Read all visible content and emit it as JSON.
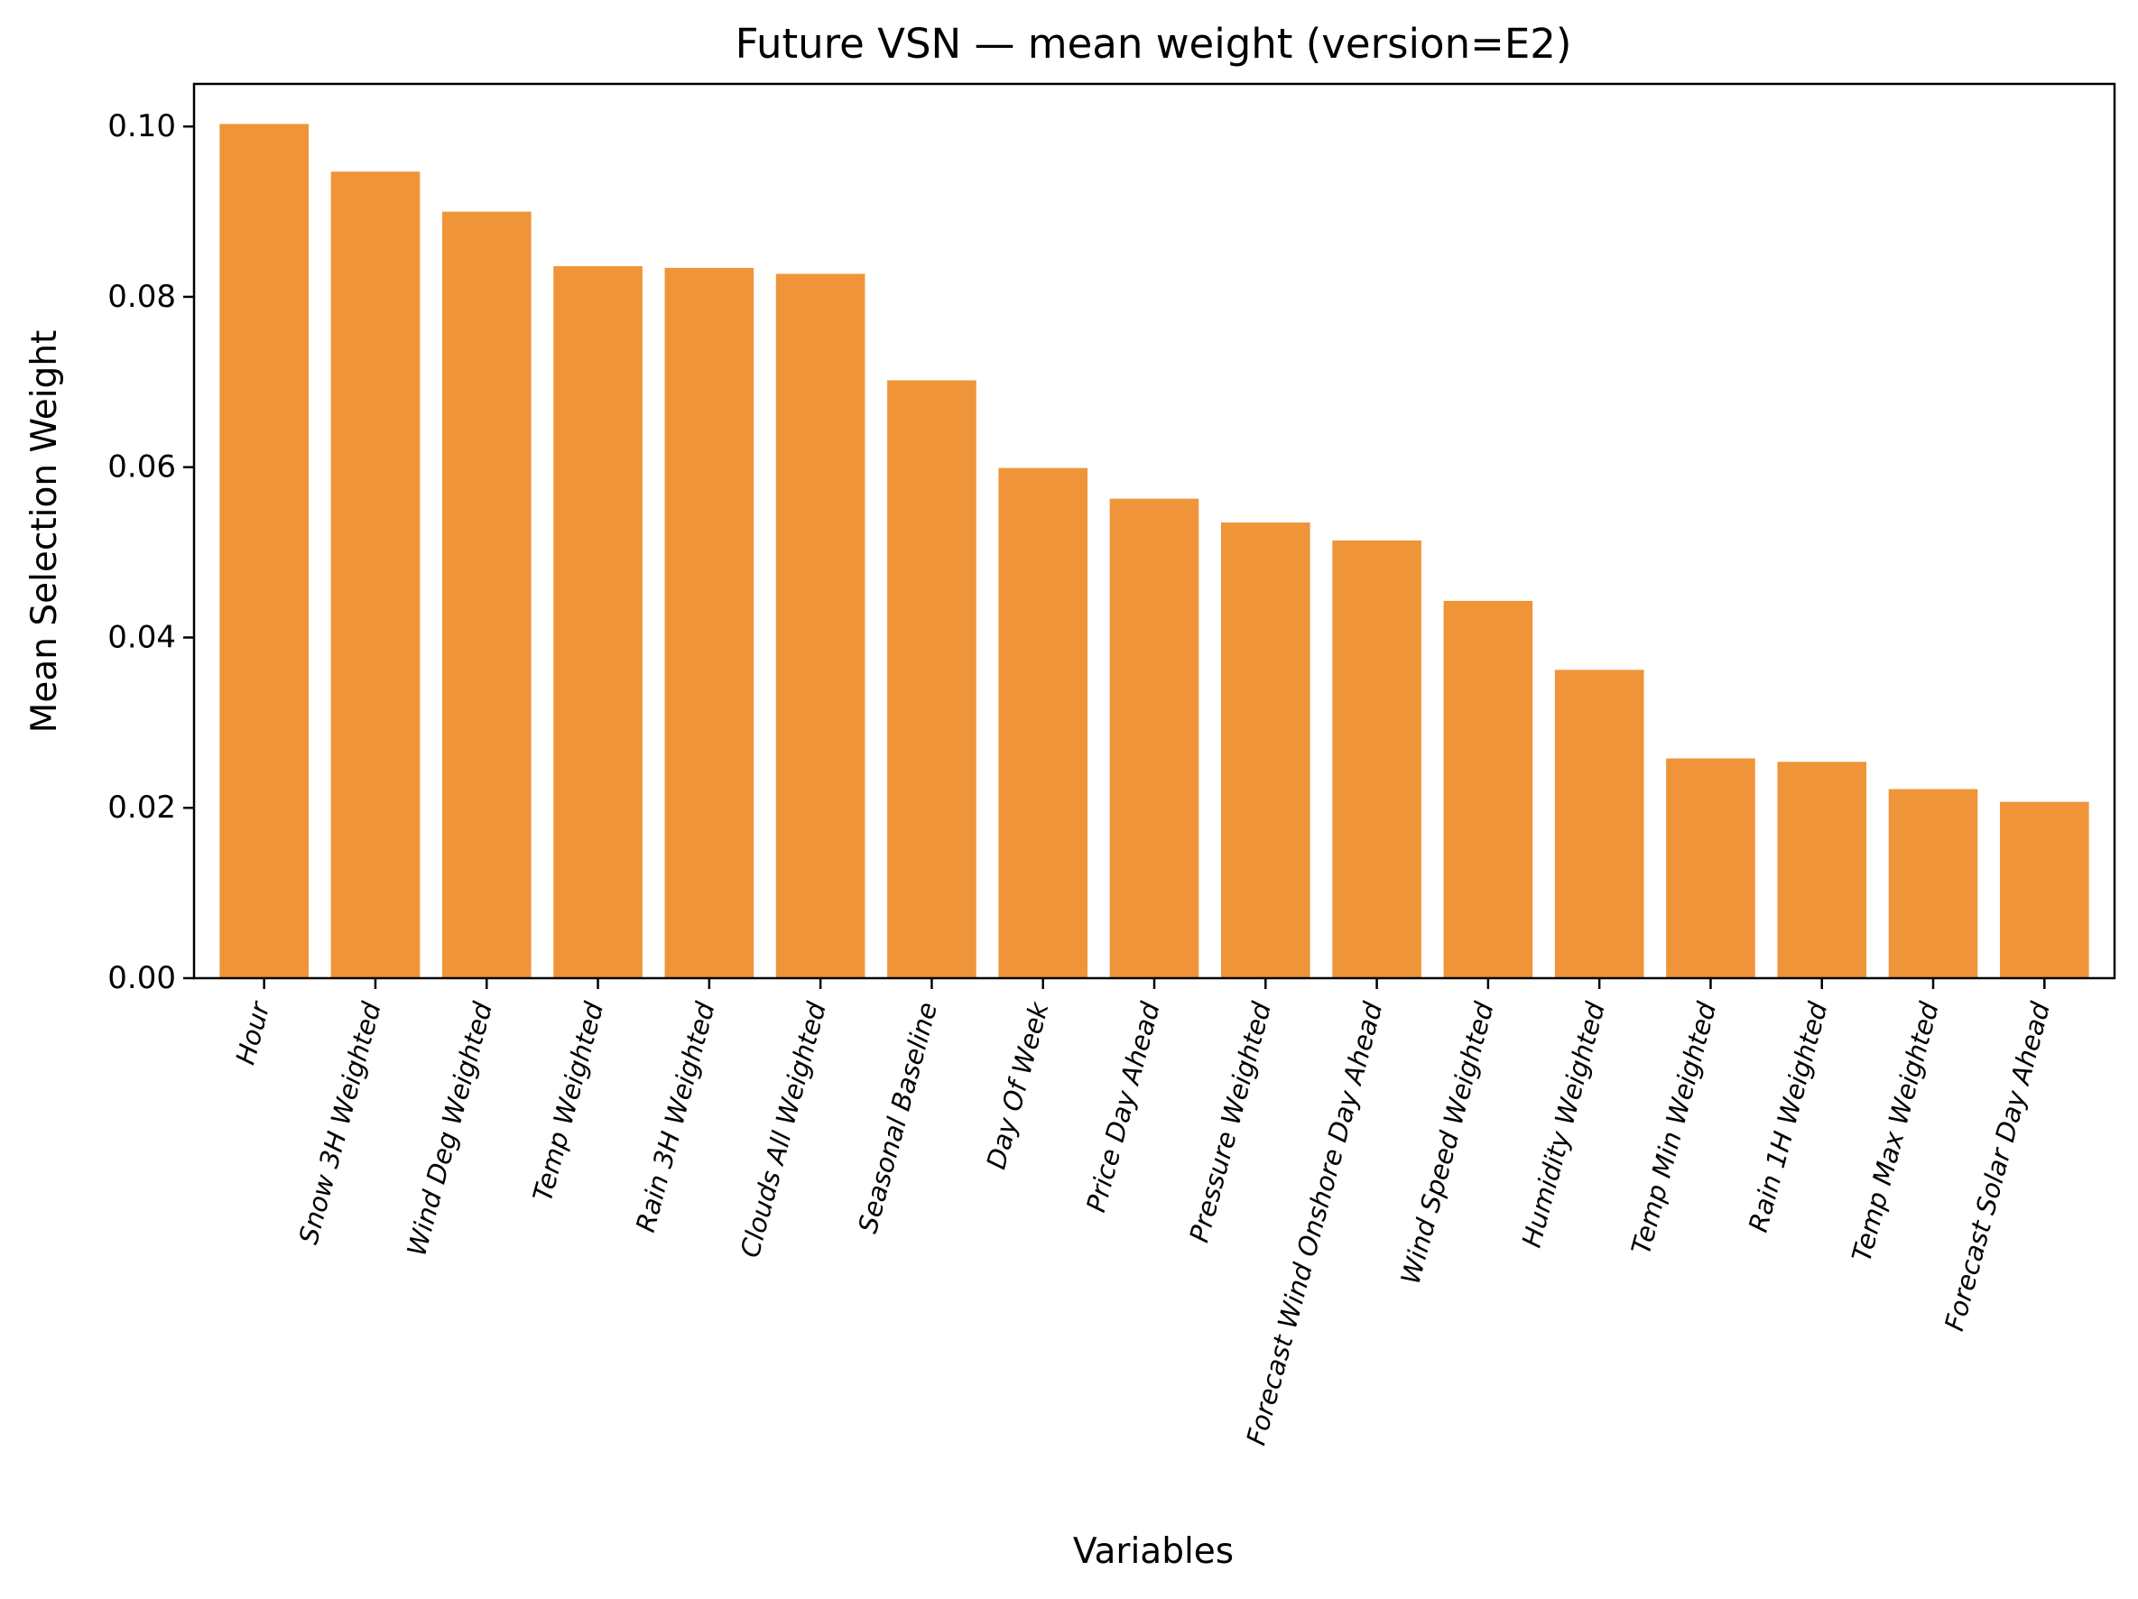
{
  "chart_data": {
    "type": "bar",
    "title": "Future VSN — mean weight (version=E2)",
    "xlabel": "Variables",
    "ylabel": "Mean Selection Weight",
    "ylim": [
      0,
      0.105
    ],
    "yticks": [
      "0.00",
      "0.02",
      "0.04",
      "0.06",
      "0.08",
      "0.10"
    ],
    "ytick_values": [
      0,
      0.02,
      0.04,
      0.06,
      0.08,
      0.1
    ],
    "grid": false,
    "legend": "none",
    "bar_color": "#f0943a",
    "categories": [
      "Hour",
      "Snow 3H Weighted",
      "Wind Deg Weighted",
      "Temp Weighted",
      "Rain 3H Weighted",
      "Clouds All Weighted",
      "Seasonal Baseline",
      "Day Of Week",
      "Price Day Ahead",
      "Pressure Weighted",
      "Forecast Wind Onshore Day Ahead",
      "Wind Speed Weighted",
      "Humidity Weighted",
      "Temp Min Weighted",
      "Rain 1H Weighted",
      "Temp Max Weighted",
      "Forecast Solar Day Ahead"
    ],
    "values": [
      0.1003,
      0.0947,
      0.09,
      0.0836,
      0.0834,
      0.0827,
      0.0702,
      0.0599,
      0.0563,
      0.0535,
      0.0514,
      0.0443,
      0.0362,
      0.0258,
      0.0254,
      0.0222,
      0.0207
    ]
  }
}
